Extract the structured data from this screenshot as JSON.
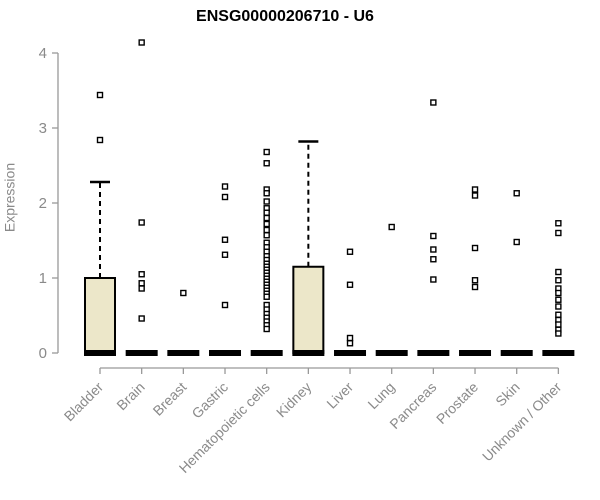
{
  "colors": {
    "background": "#ffffff",
    "box_fill": "#ECE7C9",
    "box_stroke": "#000000",
    "axis": "#999999",
    "axis_text": "#8a8a8a",
    "title_text": "#000000"
  },
  "chart_data": {
    "type": "boxplot",
    "title": "ENSG00000206710 - U6",
    "xlabel": "",
    "ylabel": "Expression",
    "ylim": [
      0,
      4
    ],
    "yticks": [
      0,
      1,
      2,
      3,
      4
    ],
    "grid": false,
    "legend": "none",
    "outlier_marker": "open-square",
    "categories": [
      "Bladder",
      "Brain",
      "Breast",
      "Gastric",
      "Hematopoietic cells",
      "Kidney",
      "Liver",
      "Lung",
      "Pancreas",
      "Prostate",
      "Skin",
      "Unknown / Other"
    ],
    "series": [
      {
        "name": "Bladder",
        "q1": 0,
        "median": 0,
        "q3": 1.0,
        "whisker_low": 0,
        "whisker_high": 2.28,
        "outliers": [
          2.84,
          3.44
        ]
      },
      {
        "name": "Brain",
        "q1": 0,
        "median": 0,
        "q3": 0,
        "whisker_low": 0,
        "whisker_high": 0,
        "outliers": [
          4.14,
          1.74,
          1.05,
          0.93,
          0.86,
          0.46
        ]
      },
      {
        "name": "Breast",
        "q1": 0,
        "median": 0,
        "q3": 0,
        "whisker_low": 0,
        "whisker_high": 0,
        "outliers": [
          0.8
        ]
      },
      {
        "name": "Gastric",
        "q1": 0,
        "median": 0,
        "q3": 0,
        "whisker_low": 0,
        "whisker_high": 0,
        "outliers": [
          2.22,
          2.08,
          1.51,
          1.31,
          0.64
        ]
      },
      {
        "name": "Hematopoietic cells",
        "q1": 0,
        "median": 0,
        "q3": 0,
        "whisker_low": 0,
        "whisker_high": 0,
        "outliers": [
          2.68,
          2.53,
          2.18,
          2.13,
          2.02,
          1.93,
          1.87,
          1.8,
          1.72,
          1.64,
          1.57,
          1.47,
          1.41,
          1.35,
          1.29,
          1.24,
          1.19,
          1.15,
          1.11,
          1.07,
          1.03,
          0.99,
          0.95,
          0.91,
          0.87,
          0.83,
          0.79,
          0.75,
          0.64,
          0.58,
          0.52,
          0.47,
          0.42,
          0.37,
          0.32
        ]
      },
      {
        "name": "Kidney",
        "q1": 0,
        "median": 0,
        "q3": 1.15,
        "whisker_low": 0,
        "whisker_high": 2.82,
        "outliers": []
      },
      {
        "name": "Liver",
        "q1": 0,
        "median": 0,
        "q3": 0,
        "whisker_low": 0,
        "whisker_high": 0,
        "outliers": [
          1.35,
          0.91,
          0.2,
          0.13
        ]
      },
      {
        "name": "Lung",
        "q1": 0,
        "median": 0,
        "q3": 0,
        "whisker_low": 0,
        "whisker_high": 0,
        "outliers": [
          1.68
        ]
      },
      {
        "name": "Pancreas",
        "q1": 0,
        "median": 0,
        "q3": 0,
        "whisker_low": 0,
        "whisker_high": 0,
        "outliers": [
          3.34,
          1.56,
          1.38,
          1.25,
          0.98
        ]
      },
      {
        "name": "Prostate",
        "q1": 0,
        "median": 0,
        "q3": 0,
        "whisker_low": 0,
        "whisker_high": 0,
        "outliers": [
          2.18,
          2.1,
          1.4,
          0.97,
          0.88
        ]
      },
      {
        "name": "Skin",
        "q1": 0,
        "median": 0,
        "q3": 0,
        "whisker_low": 0,
        "whisker_high": 0,
        "outliers": [
          2.13,
          1.48
        ]
      },
      {
        "name": "Unknown / Other",
        "q1": 0,
        "median": 0,
        "q3": 0,
        "whisker_low": 0,
        "whisker_high": 0,
        "outliers": [
          1.73,
          1.6,
          1.08,
          0.97,
          0.86,
          0.8,
          0.71,
          0.62,
          0.51,
          0.44,
          0.38,
          0.31,
          0.26
        ]
      }
    ]
  }
}
